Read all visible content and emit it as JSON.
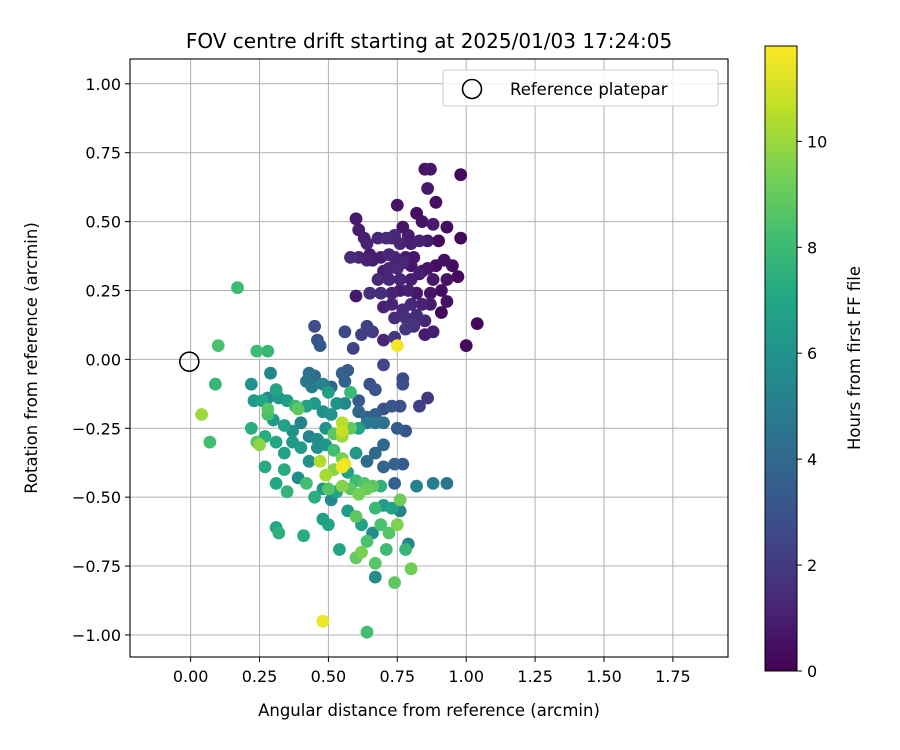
{
  "chart_data": {
    "type": "scatter",
    "title": "FOV centre drift starting at 2025/01/03 17:24:05",
    "xlabel": "Angular distance from reference (arcmin)",
    "ylabel": "Rotation from reference (arcmin)",
    "xlim": [
      -0.22,
      1.95
    ],
    "ylim": [
      -1.08,
      1.09
    ],
    "x_ticks": [
      "0.00",
      "0.25",
      "0.50",
      "0.75",
      "1.00",
      "1.25",
      "1.50",
      "1.75"
    ],
    "y_ticks": [
      "1.00",
      "0.75",
      "0.50",
      "0.25",
      "0.00",
      "−0.25",
      "−0.50",
      "−0.75",
      "−1.00"
    ],
    "grid": true,
    "legend": {
      "placement": "top-right",
      "entries": [
        {
          "label": "Reference platepar",
          "marker": "open-circle",
          "color": "#000000"
        }
      ]
    },
    "reference_point": {
      "x": 0.0,
      "y": 0.0
    },
    "colorbar": {
      "label": "Hours from first FF file",
      "colormap": "viridis",
      "range": [
        0,
        11.8
      ],
      "ticks": [
        "0",
        "2",
        "4",
        "6",
        "8",
        "10"
      ]
    },
    "points_columns": [
      "x",
      "y",
      "hours"
    ],
    "points": [
      [
        0.6,
        0.51,
        0.8
      ],
      [
        0.61,
        0.47,
        0.9
      ],
      [
        0.63,
        0.44,
        1.0
      ],
      [
        0.73,
        0.44,
        1.1
      ],
      [
        0.75,
        0.56,
        0.6
      ],
      [
        0.77,
        0.48,
        0.7
      ],
      [
        0.79,
        0.45,
        0.9
      ],
      [
        0.82,
        0.53,
        0.5
      ],
      [
        0.84,
        0.5,
        0.6
      ],
      [
        0.85,
        0.69,
        0.6
      ],
      [
        0.87,
        0.69,
        0.7
      ],
      [
        0.86,
        0.62,
        0.8
      ],
      [
        0.89,
        0.57,
        0.5
      ],
      [
        0.98,
        0.67,
        0.3
      ],
      [
        0.88,
        0.49,
        0.9
      ],
      [
        0.93,
        0.48,
        0.4
      ],
      [
        0.86,
        0.43,
        0.8
      ],
      [
        0.9,
        0.43,
        0.3
      ],
      [
        0.98,
        0.44,
        0.3
      ],
      [
        0.64,
        0.42,
        1.1
      ],
      [
        0.68,
        0.44,
        1.2
      ],
      [
        0.71,
        0.44,
        1.4
      ],
      [
        0.74,
        0.45,
        1.3
      ],
      [
        0.76,
        0.42,
        1.2
      ],
      [
        0.8,
        0.42,
        1.0
      ],
      [
        0.83,
        0.43,
        1.1
      ],
      [
        0.61,
        0.37,
        1.2
      ],
      [
        0.64,
        0.36,
        1.1
      ],
      [
        0.66,
        0.36,
        1.0
      ],
      [
        0.6,
        0.23,
        0.8
      ],
      [
        0.58,
        0.37,
        1.5
      ],
      [
        0.65,
        0.38,
        0.9
      ],
      [
        0.69,
        0.37,
        1.0
      ],
      [
        0.72,
        0.38,
        1.3
      ],
      [
        0.74,
        0.37,
        1.1
      ],
      [
        0.78,
        0.37,
        0.9
      ],
      [
        0.81,
        0.37,
        0.8
      ],
      [
        0.7,
        0.32,
        1.0
      ],
      [
        0.72,
        0.33,
        1.2
      ],
      [
        0.75,
        0.33,
        1.4
      ],
      [
        0.77,
        0.35,
        1.3
      ],
      [
        0.8,
        0.34,
        0.7
      ],
      [
        0.84,
        0.32,
        0.6
      ],
      [
        0.86,
        0.33,
        0.7
      ],
      [
        0.89,
        0.34,
        0.4
      ],
      [
        0.92,
        0.36,
        0.5
      ],
      [
        0.95,
        0.34,
        0.4
      ],
      [
        0.97,
        0.3,
        0.3
      ],
      [
        0.93,
        0.29,
        0.6
      ],
      [
        0.88,
        0.29,
        0.8
      ],
      [
        0.83,
        0.31,
        1.0
      ],
      [
        0.8,
        0.29,
        1.0
      ],
      [
        0.76,
        0.29,
        1.2
      ],
      [
        0.72,
        0.29,
        1.3
      ],
      [
        0.68,
        0.29,
        1.4
      ],
      [
        0.65,
        0.24,
        1.6
      ],
      [
        0.69,
        0.24,
        1.5
      ],
      [
        0.73,
        0.24,
        1.1
      ],
      [
        0.76,
        0.25,
        0.9
      ],
      [
        0.79,
        0.25,
        1.0
      ],
      [
        0.82,
        0.24,
        0.7
      ],
      [
        0.87,
        0.24,
        0.6
      ],
      [
        0.91,
        0.25,
        0.4
      ],
      [
        0.93,
        0.21,
        0.5
      ],
      [
        0.7,
        0.19,
        1.1
      ],
      [
        0.73,
        0.2,
        1.2
      ],
      [
        0.77,
        0.18,
        1.4
      ],
      [
        0.8,
        0.2,
        1.3
      ],
      [
        0.84,
        0.2,
        1.1
      ],
      [
        0.87,
        0.2,
        0.9
      ],
      [
        0.91,
        0.17,
        0.2
      ],
      [
        0.74,
        0.15,
        1.5
      ],
      [
        0.78,
        0.15,
        1.6
      ],
      [
        0.82,
        0.16,
        1.5
      ],
      [
        0.85,
        0.14,
        1.2
      ],
      [
        0.88,
        0.1,
        1.0
      ],
      [
        0.85,
        0.09,
        0.9
      ],
      [
        0.81,
        0.12,
        1.7
      ],
      [
        0.78,
        0.11,
        1.9
      ],
      [
        0.74,
        0.08,
        1.8
      ],
      [
        0.7,
        0.07,
        1.2
      ],
      [
        0.66,
        0.1,
        2.0
      ],
      [
        0.64,
        0.12,
        2.2
      ],
      [
        0.56,
        0.1,
        2.6
      ],
      [
        0.62,
        0.09,
        2.1
      ],
      [
        0.59,
        0.04,
        2.3
      ],
      [
        1.04,
        0.13,
        0.2
      ],
      [
        1.0,
        0.05,
        0.3
      ],
      [
        0.45,
        0.12,
        2.8
      ],
      [
        0.46,
        0.07,
        3.0
      ],
      [
        0.47,
        0.05,
        3.2
      ],
      [
        0.75,
        0.05,
        11.6
      ],
      [
        0.7,
        -0.02,
        2.5
      ],
      [
        0.77,
        -0.07,
        2.6
      ],
      [
        0.77,
        -0.09,
        2.8
      ],
      [
        0.65,
        -0.09,
        2.9
      ],
      [
        0.67,
        -0.11,
        3.1
      ],
      [
        0.61,
        -0.15,
        3.3
      ],
      [
        0.57,
        -0.04,
        3.4
      ],
      [
        0.55,
        -0.05,
        3.6
      ],
      [
        0.56,
        -0.08,
        3.7
      ],
      [
        0.51,
        -0.1,
        3.9
      ],
      [
        0.45,
        -0.06,
        4.1
      ],
      [
        0.43,
        -0.05,
        4.3
      ],
      [
        0.42,
        -0.08,
        4.6
      ],
      [
        0.44,
        -0.1,
        4.9
      ],
      [
        0.48,
        -0.09,
        5.2
      ],
      [
        0.5,
        -0.12,
        6.6
      ],
      [
        0.86,
        -0.14,
        2.0
      ],
      [
        0.83,
        -0.17,
        2.2
      ],
      [
        0.76,
        -0.17,
        2.9
      ],
      [
        0.73,
        -0.17,
        3.2
      ],
      [
        0.7,
        -0.18,
        3.0
      ],
      [
        0.67,
        -0.2,
        3.5
      ],
      [
        0.64,
        -0.21,
        3.6
      ],
      [
        0.61,
        -0.19,
        3.9
      ],
      [
        0.58,
        -0.12,
        7.9
      ],
      [
        0.56,
        -0.16,
        5.5
      ],
      [
        0.53,
        -0.16,
        5.9
      ],
      [
        0.51,
        -0.2,
        6.1
      ],
      [
        0.48,
        -0.19,
        5.8
      ],
      [
        0.45,
        -0.16,
        6.3
      ],
      [
        0.42,
        -0.17,
        6.8
      ],
      [
        0.39,
        -0.18,
        8.8
      ],
      [
        0.38,
        -0.17,
        7.9
      ],
      [
        0.35,
        -0.15,
        6.5
      ],
      [
        0.32,
        -0.14,
        6.2
      ],
      [
        0.28,
        -0.14,
        5.6
      ],
      [
        0.29,
        -0.05,
        5.4
      ],
      [
        0.22,
        -0.09,
        6.0
      ],
      [
        0.23,
        -0.15,
        6.4
      ],
      [
        0.26,
        -0.15,
        7.0
      ],
      [
        0.31,
        -0.11,
        6.9
      ],
      [
        0.28,
        -0.18,
        8.6
      ],
      [
        0.28,
        -0.2,
        8.3
      ],
      [
        0.3,
        -0.22,
        6.3
      ],
      [
        0.34,
        -0.24,
        6.7
      ],
      [
        0.37,
        -0.26,
        5.9
      ],
      [
        0.4,
        -0.23,
        5.2
      ],
      [
        0.43,
        -0.28,
        5.4
      ],
      [
        0.46,
        -0.29,
        5.7
      ],
      [
        0.49,
        -0.25,
        6.0
      ],
      [
        0.52,
        -0.27,
        8.7
      ],
      [
        0.55,
        -0.23,
        10.5
      ],
      [
        0.55,
        -0.26,
        10.8
      ],
      [
        0.55,
        -0.28,
        10.1
      ],
      [
        0.58,
        -0.25,
        8.9
      ],
      [
        0.61,
        -0.25,
        6.9
      ],
      [
        0.64,
        -0.23,
        4.8
      ],
      [
        0.67,
        -0.23,
        4.6
      ],
      [
        0.7,
        -0.23,
        4.4
      ],
      [
        0.75,
        -0.25,
        3.4
      ],
      [
        0.78,
        -0.26,
        3.0
      ],
      [
        0.22,
        -0.25,
        7.4
      ],
      [
        0.24,
        -0.3,
        8.6
      ],
      [
        0.27,
        -0.28,
        7.3
      ],
      [
        0.31,
        -0.3,
        7.0
      ],
      [
        0.34,
        -0.34,
        6.8
      ],
      [
        0.37,
        -0.3,
        6.4
      ],
      [
        0.4,
        -0.32,
        6.5
      ],
      [
        0.43,
        -0.37,
        6.0
      ],
      [
        0.46,
        -0.32,
        5.8
      ],
      [
        0.49,
        -0.31,
        6.2
      ],
      [
        0.52,
        -0.33,
        8.2
      ],
      [
        0.55,
        -0.36,
        9.3
      ],
      [
        0.56,
        -0.38,
        11.3
      ],
      [
        0.55,
        -0.39,
        11.6
      ],
      [
        0.52,
        -0.4,
        9.7
      ],
      [
        0.49,
        -0.42,
        10.2
      ],
      [
        0.47,
        -0.37,
        10.4
      ],
      [
        0.6,
        -0.34,
        6.3
      ],
      [
        0.64,
        -0.37,
        4.2
      ],
      [
        0.67,
        -0.34,
        4.0
      ],
      [
        0.7,
        -0.31,
        4.1
      ],
      [
        0.74,
        -0.38,
        3.7
      ],
      [
        0.77,
        -0.38,
        3.3
      ],
      [
        0.7,
        -0.39,
        3.8
      ],
      [
        0.57,
        -0.41,
        6.6
      ],
      [
        0.6,
        -0.44,
        8.0
      ],
      [
        0.63,
        -0.45,
        8.5
      ],
      [
        0.66,
        -0.46,
        8.8
      ],
      [
        0.69,
        -0.46,
        7.6
      ],
      [
        0.74,
        -0.45,
        3.6
      ],
      [
        0.82,
        -0.46,
        5.2
      ],
      [
        0.88,
        -0.45,
        4.9
      ],
      [
        0.93,
        -0.45,
        4.6
      ],
      [
        0.27,
        -0.39,
        7.2
      ],
      [
        0.31,
        -0.45,
        7.1
      ],
      [
        0.34,
        -0.4,
        7.3
      ],
      [
        0.35,
        -0.48,
        7.7
      ],
      [
        0.39,
        -0.43,
        5.7
      ],
      [
        0.42,
        -0.45,
        8.2
      ],
      [
        0.45,
        -0.5,
        7.4
      ],
      [
        0.48,
        -0.47,
        6.2
      ],
      [
        0.5,
        -0.47,
        8.6
      ],
      [
        0.53,
        -0.48,
        6.9
      ],
      [
        0.55,
        -0.46,
        9.6
      ],
      [
        0.58,
        -0.47,
        8.8
      ],
      [
        0.61,
        -0.49,
        9.3
      ],
      [
        0.64,
        -0.47,
        9.1
      ],
      [
        0.67,
        -0.54,
        7.9
      ],
      [
        0.7,
        -0.53,
        6.4
      ],
      [
        0.73,
        -0.54,
        6.7
      ],
      [
        0.76,
        -0.51,
        9.2
      ],
      [
        0.76,
        -0.55,
        5.3
      ],
      [
        0.51,
        -0.51,
        5.6
      ],
      [
        0.57,
        -0.55,
        6.4
      ],
      [
        0.6,
        -0.57,
        8.8
      ],
      [
        0.62,
        -0.6,
        6.7
      ],
      [
        0.66,
        -0.63,
        5.8
      ],
      [
        0.69,
        -0.6,
        8.4
      ],
      [
        0.72,
        -0.63,
        8.6
      ],
      [
        0.75,
        -0.6,
        9.5
      ],
      [
        0.79,
        -0.67,
        5.4
      ],
      [
        0.78,
        -0.69,
        7.8
      ],
      [
        0.48,
        -0.58,
        6.5
      ],
      [
        0.5,
        -0.6,
        6.8
      ],
      [
        0.54,
        -0.69,
        7.0
      ],
      [
        0.6,
        -0.72,
        8.9
      ],
      [
        0.62,
        -0.7,
        9.4
      ],
      [
        0.64,
        -0.66,
        8.4
      ],
      [
        0.67,
        -0.74,
        8.7
      ],
      [
        0.71,
        -0.69,
        8.1
      ],
      [
        0.67,
        -0.79,
        5.7
      ],
      [
        0.74,
        -0.81,
        8.8
      ],
      [
        0.8,
        -0.76,
        9.2
      ],
      [
        0.31,
        -0.61,
        7.0
      ],
      [
        0.32,
        -0.63,
        7.5
      ],
      [
        0.41,
        -0.64,
        7.3
      ],
      [
        0.48,
        -0.95,
        11.5
      ],
      [
        0.64,
        -0.99,
        8.2
      ],
      [
        0.17,
        0.26,
        8.0
      ],
      [
        0.1,
        0.05,
        8.4
      ],
      [
        0.09,
        -0.09,
        7.8
      ],
      [
        0.04,
        -0.2,
        10.1
      ],
      [
        0.07,
        -0.3,
        8.2
      ],
      [
        0.24,
        0.03,
        8.0
      ],
      [
        0.28,
        0.03,
        7.8
      ],
      [
        0.25,
        -0.31,
        9.8
      ]
    ]
  }
}
